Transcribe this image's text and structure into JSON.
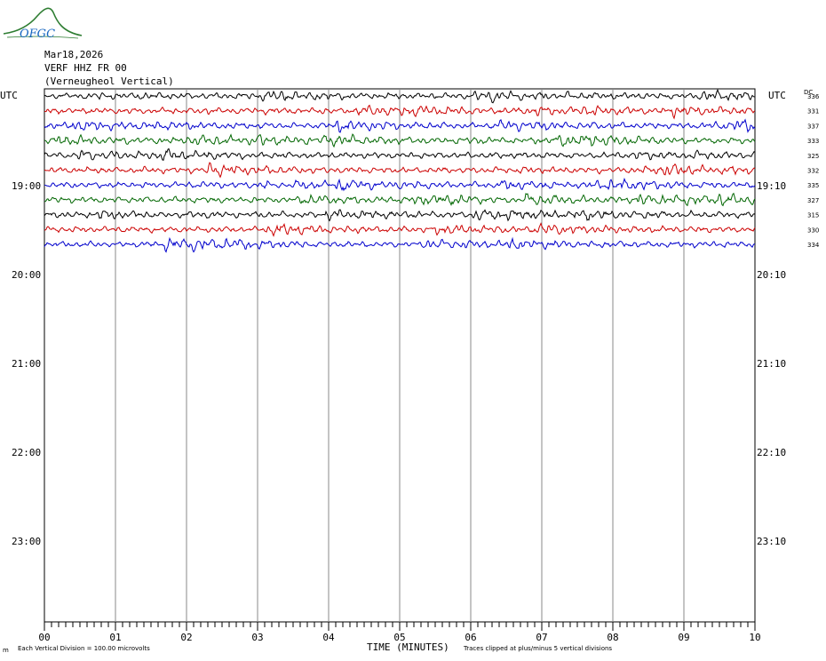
{
  "logo": {
    "text": "OFGC",
    "color": "#2e7d32",
    "text_color": "#1565c0"
  },
  "header": {
    "date": "Mar18,2026",
    "station": "VERF HHZ FR 00",
    "location": "(Verneugheol Vertical)"
  },
  "chart_data": {
    "type": "line",
    "title": "",
    "xlabel": "TIME (MINUTES)",
    "x_ticks": [
      "00",
      "01",
      "02",
      "03",
      "04",
      "05",
      "06",
      "07",
      "08",
      "09",
      "10"
    ],
    "xlim": [
      0,
      10
    ],
    "left_axis_label": "UTC",
    "right_axis_label": "UTC",
    "dc_header": "DC",
    "left_hour_labels": [
      "19:00",
      "20:00",
      "21:00",
      "22:00",
      "23:00"
    ],
    "right_hour_labels": [
      "19:10",
      "20:10",
      "21:10",
      "22:10",
      "23:10"
    ],
    "trace_colors": [
      "#000000",
      "#cc0000",
      "#0000cc",
      "#006600"
    ],
    "traces": [
      {
        "dc": "336",
        "color": "#000000"
      },
      {
        "dc": "331",
        "color": "#cc0000"
      },
      {
        "dc": "337",
        "color": "#0000cc"
      },
      {
        "dc": "333",
        "color": "#006600"
      },
      {
        "dc": "325",
        "color": "#000000"
      },
      {
        "dc": "332",
        "color": "#cc0000"
      },
      {
        "dc": "335",
        "color": "#0000cc"
      },
      {
        "dc": "327",
        "color": "#006600"
      },
      {
        "dc": "315",
        "color": "#000000"
      },
      {
        "dc": "330",
        "color": "#cc0000"
      },
      {
        "dc": "334",
        "color": "#0000cc"
      }
    ],
    "grid": true
  },
  "footer": {
    "left": "Each Vertical Division =  100.00 microvolts",
    "right": "Traces clipped at plus/minus 5 vertical divisions",
    "corner_mark": "m"
  }
}
